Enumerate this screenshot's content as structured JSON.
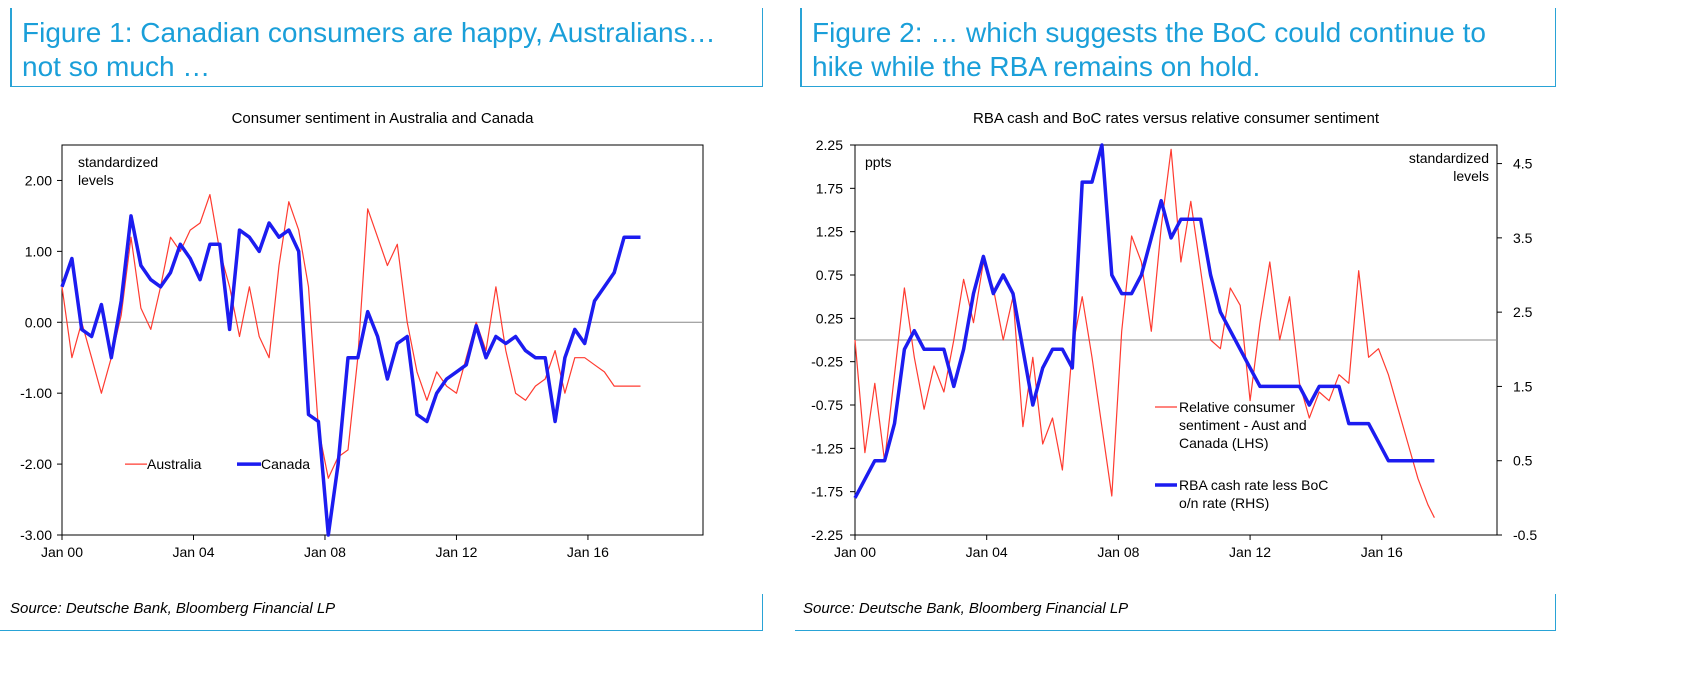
{
  "figure1": {
    "title_line1": "Figure 1: Canadian consumers are happy, Australians…",
    "title_line2": "not so much …",
    "source": "Source: Deutsche Bank, Bloomberg Financial LP"
  },
  "figure2": {
    "title_line1": "Figure 2: … which suggests the BoC could continue to",
    "title_line2": "hike while the RBA remains on hold.",
    "source": "Source: Deutsche Bank, Bloomberg Financial LP"
  },
  "chart_data": [
    {
      "type": "line",
      "title": "Consumer sentiment in Australia and Canada",
      "unit_label": "standardized levels",
      "unit_label_lines": [
        "standardized",
        "levels"
      ],
      "x_tick_labels": [
        "Jan 00",
        "Jan 04",
        "Jan 08",
        "Jan 12",
        "Jan 16"
      ],
      "x_tick_years": [
        2000,
        2004,
        2008,
        2012,
        2016
      ],
      "xlim": [
        2000,
        2019.5
      ],
      "ylim": [
        -3,
        2.5
      ],
      "y_ticks": [
        2,
        1,
        0,
        -1,
        -2,
        -3
      ],
      "y_tick_labels": [
        "2.00",
        "1.00",
        "0.00",
        "-1.00",
        "-2.00",
        "-3.00"
      ],
      "series": [
        {
          "name": "Australia",
          "color": "#ff3b30",
          "width": "thin",
          "x": [
            2000,
            2000.3,
            2000.6,
            2000.9,
            2001.2,
            2001.5,
            2001.8,
            2002.1,
            2002.4,
            2002.7,
            2003.0,
            2003.3,
            2003.6,
            2003.9,
            2004.2,
            2004.5,
            2004.8,
            2005.1,
            2005.4,
            2005.7,
            2006.0,
            2006.3,
            2006.6,
            2006.9,
            2007.2,
            2007.5,
            2007.8,
            2008.1,
            2008.4,
            2008.7,
            2009.0,
            2009.3,
            2009.6,
            2009.9,
            2010.2,
            2010.5,
            2010.8,
            2011.1,
            2011.4,
            2011.7,
            2012.0,
            2012.3,
            2012.6,
            2012.9,
            2013.2,
            2013.5,
            2013.8,
            2014.1,
            2014.4,
            2014.7,
            2015.0,
            2015.3,
            2015.6,
            2015.9,
            2016.2,
            2016.5,
            2016.8,
            2017.1,
            2017.4,
            2017.6
          ],
          "values": [
            0.5,
            -0.5,
            0.0,
            -0.5,
            -1.0,
            -0.5,
            0.1,
            1.2,
            0.2,
            -0.1,
            0.5,
            1.2,
            1.0,
            1.3,
            1.4,
            1.8,
            1.0,
            0.5,
            -0.2,
            0.5,
            -0.2,
            -0.5,
            0.8,
            1.7,
            1.3,
            0.5,
            -1.5,
            -2.2,
            -1.9,
            -1.8,
            -0.5,
            1.6,
            1.2,
            0.8,
            1.1,
            0.0,
            -0.7,
            -1.1,
            -0.7,
            -0.9,
            -1.0,
            -0.5,
            0.0,
            -0.4,
            0.5,
            -0.4,
            -1.0,
            -1.1,
            -0.9,
            -0.8,
            -0.4,
            -1.0,
            -0.5,
            -0.5,
            -0.6,
            -0.7,
            -0.9,
            -0.9,
            -0.9,
            -0.9
          ]
        },
        {
          "name": "Canada",
          "color": "#1c1cf0",
          "width": "thick",
          "x": [
            2000,
            2000.3,
            2000.6,
            2000.9,
            2001.2,
            2001.5,
            2001.8,
            2002.1,
            2002.4,
            2002.7,
            2003.0,
            2003.3,
            2003.6,
            2003.9,
            2004.2,
            2004.5,
            2004.8,
            2005.1,
            2005.4,
            2005.7,
            2006.0,
            2006.3,
            2006.6,
            2006.9,
            2007.2,
            2007.5,
            2007.8,
            2008.1,
            2008.4,
            2008.7,
            2009.0,
            2009.3,
            2009.6,
            2009.9,
            2010.2,
            2010.5,
            2010.8,
            2011.1,
            2011.4,
            2011.7,
            2012.0,
            2012.3,
            2012.6,
            2012.9,
            2013.2,
            2013.5,
            2013.8,
            2014.1,
            2014.4,
            2014.7,
            2015.0,
            2015.3,
            2015.6,
            2015.9,
            2016.2,
            2016.5,
            2016.8,
            2017.1,
            2017.4,
            2017.6
          ],
          "values": [
            0.5,
            0.9,
            -0.1,
            -0.2,
            0.25,
            -0.5,
            0.3,
            1.5,
            0.8,
            0.6,
            0.5,
            0.7,
            1.1,
            0.9,
            0.6,
            1.1,
            1.1,
            -0.1,
            1.3,
            1.2,
            1.0,
            1.4,
            1.2,
            1.3,
            1.0,
            -1.3,
            -1.4,
            -3.0,
            -2.0,
            -0.5,
            -0.5,
            0.15,
            -0.2,
            -0.8,
            -0.3,
            -0.2,
            -1.3,
            -1.4,
            -1.0,
            -0.8,
            -0.7,
            -0.6,
            -0.05,
            -0.5,
            -0.2,
            -0.3,
            -0.2,
            -0.4,
            -0.5,
            -0.5,
            -1.4,
            -0.5,
            -0.1,
            -0.3,
            0.3,
            0.5,
            0.7,
            1.2,
            1.2,
            1.2
          ]
        }
      ]
    },
    {
      "type": "line",
      "title": "RBA cash and BoC rates versus relative consumer sentiment",
      "left_unit_label": "ppts",
      "right_unit_label": "standardized levels",
      "right_unit_label_lines": [
        "standardized",
        "levels"
      ],
      "x_tick_labels": [
        "Jan 00",
        "Jan 04",
        "Jan 08",
        "Jan 12",
        "Jan 16"
      ],
      "x_tick_years": [
        2000,
        2004,
        2008,
        2012,
        2016
      ],
      "xlim": [
        2000,
        2019.5
      ],
      "ylim_left": [
        -2.25,
        2.25
      ],
      "y_ticks_left": [
        2.25,
        1.75,
        1.25,
        0.75,
        0.25,
        -0.25,
        -0.75,
        -1.25,
        -1.75,
        -2.25
      ],
      "y_tick_labels_left": [
        "2.25",
        "1.75",
        "1.25",
        "0.75",
        "0.25",
        "-0.25",
        "-0.75",
        "-1.25",
        "-1.75",
        "-2.25"
      ],
      "ylim_right": [
        -0.5,
        4.75
      ],
      "y_ticks_right": [
        4.5,
        3.5,
        2.5,
        1.5,
        0.5,
        -0.5
      ],
      "y_tick_labels_right": [
        "4.5",
        "3.5",
        "2.5",
        "1.5",
        "0.5",
        "-0.5"
      ],
      "series": [
        {
          "name": "Relative consumer sentiment - Aust and Canada (LHS)",
          "legend_lines": [
            "Relative consumer",
            "sentiment - Aust and",
            "Canada (LHS)"
          ],
          "axis": "left",
          "color": "#ff3b30",
          "width": "thin",
          "x": [
            2000,
            2000.3,
            2000.6,
            2000.9,
            2001.2,
            2001.5,
            2001.8,
            2002.1,
            2002.4,
            2002.7,
            2003.0,
            2003.3,
            2003.6,
            2003.9,
            2004.2,
            2004.5,
            2004.8,
            2005.1,
            2005.4,
            2005.7,
            2006.0,
            2006.3,
            2006.6,
            2006.9,
            2007.2,
            2007.5,
            2007.8,
            2008.1,
            2008.4,
            2008.7,
            2009.0,
            2009.3,
            2009.6,
            2009.9,
            2010.2,
            2010.5,
            2010.8,
            2011.1,
            2011.4,
            2011.7,
            2012.0,
            2012.3,
            2012.6,
            2012.9,
            2013.2,
            2013.5,
            2013.8,
            2014.1,
            2014.4,
            2014.7,
            2015.0,
            2015.3,
            2015.6,
            2015.9,
            2016.2,
            2016.5,
            2016.8,
            2017.1,
            2017.4,
            2017.6
          ],
          "values": [
            0.0,
            -1.3,
            -0.5,
            -1.4,
            -0.4,
            0.6,
            -0.2,
            -0.8,
            -0.3,
            -0.6,
            0.0,
            0.7,
            0.2,
            0.9,
            0.6,
            0.0,
            0.5,
            -1.0,
            -0.2,
            -1.2,
            -0.9,
            -1.5,
            -0.1,
            0.5,
            -0.2,
            -1.0,
            -1.8,
            0.1,
            1.2,
            0.9,
            0.1,
            1.3,
            2.2,
            0.9,
            1.6,
            0.8,
            0.0,
            -0.1,
            0.6,
            0.4,
            -0.7,
            0.2,
            0.9,
            0.0,
            0.5,
            -0.5,
            -0.9,
            -0.6,
            -0.7,
            -0.4,
            -0.5,
            0.8,
            -0.2,
            -0.1,
            -0.4,
            -0.8,
            -1.2,
            -1.6,
            -1.9,
            -2.05
          ]
        },
        {
          "name": "RBA cash rate less BoC o/n rate (RHS)",
          "legend_lines": [
            "RBA cash rate less BoC",
            "o/n rate (RHS)"
          ],
          "axis": "right",
          "color": "#1c1cf0",
          "width": "thick",
          "x": [
            2000,
            2000.3,
            2000.6,
            2000.9,
            2001.2,
            2001.5,
            2001.8,
            2002.1,
            2002.4,
            2002.7,
            2003.0,
            2003.3,
            2003.6,
            2003.9,
            2004.2,
            2004.5,
            2004.8,
            2005.1,
            2005.4,
            2005.7,
            2006.0,
            2006.3,
            2006.6,
            2006.9,
            2007.2,
            2007.5,
            2007.8,
            2008.1,
            2008.4,
            2008.7,
            2009.0,
            2009.3,
            2009.6,
            2009.9,
            2010.2,
            2010.5,
            2010.8,
            2011.1,
            2011.4,
            2011.7,
            2012.0,
            2012.3,
            2012.6,
            2012.9,
            2013.2,
            2013.5,
            2013.8,
            2014.1,
            2014.4,
            2014.7,
            2015.0,
            2015.3,
            2015.6,
            2015.9,
            2016.2,
            2016.5,
            2016.8,
            2017.1,
            2017.4,
            2017.6
          ],
          "values": [
            0.0,
            0.25,
            0.5,
            0.5,
            1.0,
            2.0,
            2.25,
            2.0,
            2.0,
            2.0,
            1.5,
            2.0,
            2.75,
            3.25,
            2.75,
            3.0,
            2.75,
            2.0,
            1.25,
            1.75,
            2.0,
            2.0,
            1.75,
            4.25,
            4.25,
            4.75,
            3.0,
            2.75,
            2.75,
            3.0,
            3.5,
            4.0,
            3.5,
            3.75,
            3.75,
            3.75,
            3.0,
            2.5,
            2.25,
            2.0,
            1.75,
            1.5,
            1.5,
            1.5,
            1.5,
            1.5,
            1.25,
            1.5,
            1.5,
            1.5,
            1.0,
            1.0,
            1.0,
            0.75,
            0.5,
            0.5,
            0.5,
            0.5,
            0.5,
            0.5
          ]
        }
      ]
    }
  ]
}
